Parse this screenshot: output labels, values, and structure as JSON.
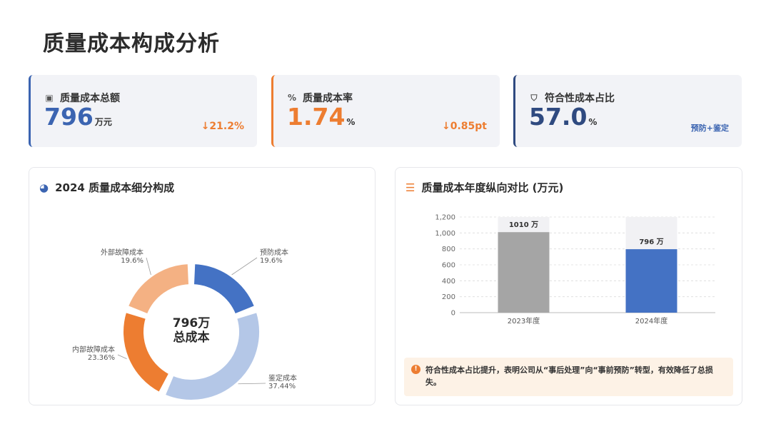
{
  "page": {
    "title": "质量成本构成分析"
  },
  "kpis": [
    {
      "icon": "money-icon",
      "label": "质量成本总额",
      "value": "796",
      "unit": "万元",
      "change": "↓21.2%"
    },
    {
      "icon": "percent-icon",
      "label": "质量成本率",
      "value": "1.74",
      "unit": "%",
      "change": "↓0.85pt"
    },
    {
      "icon": "shield-icon",
      "label": "符合性成本占比",
      "value": "57.0",
      "unit": "%",
      "tag": "预防+鉴定"
    }
  ],
  "donut_panel": {
    "title": "2024 质量成本细分构成",
    "center_value": "796万",
    "center_label": "总成本"
  },
  "bar_panel": {
    "title": "质量成本年度纵向对比 (万元)",
    "note": "符合性成本占比提升，表明公司从“事后处理”向“事前预防”转型，有效降低了总损失。"
  },
  "colors": {
    "blue": "#4472c4",
    "light_blue": "#b4c7e7",
    "orange": "#ed7d31",
    "light_orange": "#f4b183",
    "gray": "#a5a5a5"
  },
  "chart_data": [
    {
      "type": "pie",
      "title": "2024 质量成本细分构成",
      "slices": [
        {
          "name": "预防成本",
          "pct_label": "19.6%",
          "value": 19.6,
          "color": "#4472c4"
        },
        {
          "name": "鉴定成本",
          "pct_label": "37.44%",
          "value": 37.44,
          "color": "#b4c7e7"
        },
        {
          "name": "内部故障成本",
          "pct_label": "23.36%",
          "value": 23.36,
          "color": "#ed7d31"
        },
        {
          "name": "外部故障成本",
          "pct_label": "19.6%",
          "value": 19.6,
          "color": "#f4b183"
        }
      ]
    },
    {
      "type": "bar",
      "title": "质量成本年度纵向对比 (万元)",
      "categories": [
        "2023年度",
        "2024年度"
      ],
      "values": [
        1010,
        796
      ],
      "value_labels": [
        "1010 万",
        "796 万"
      ],
      "bar_colors": [
        "#a5a5a5",
        "#4472c4"
      ],
      "ylim": [
        0,
        1200
      ],
      "yticks": [
        0,
        200,
        400,
        600,
        800,
        1000,
        1200
      ],
      "ytick_labels": [
        "0",
        "200",
        "400",
        "600",
        "800",
        "1,000",
        "1,200"
      ],
      "grid": true
    }
  ]
}
